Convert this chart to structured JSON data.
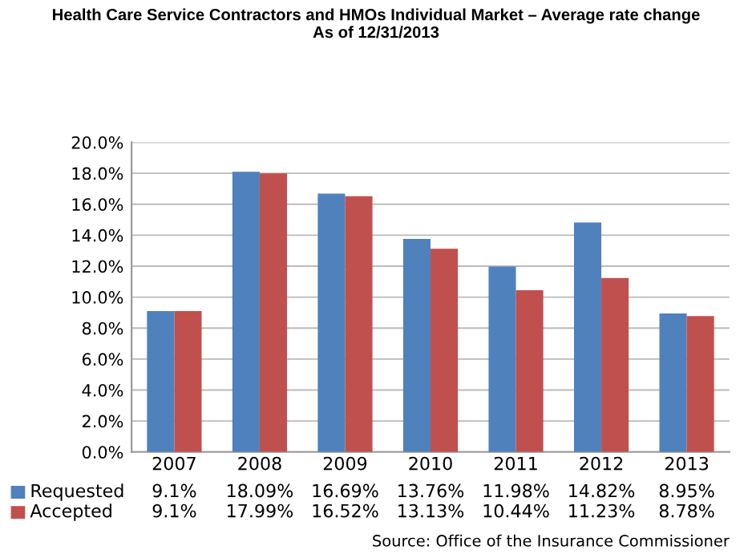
{
  "chart_data": {
    "type": "bar",
    "title": "Health Care Service Contractors and HMOs Individual Market – Average rate change\nAs of 12/31/2013",
    "categories": [
      "2007",
      "2008",
      "2009",
      "2010",
      "2011",
      "2012",
      "2013"
    ],
    "series": [
      {
        "name": "Requested",
        "color": "#4f81bd",
        "values": [
          9.1,
          18.09,
          16.69,
          13.76,
          11.98,
          14.82,
          8.95
        ],
        "value_labels": [
          "9.1%",
          "18.09%",
          "16.69%",
          "13.76%",
          "11.98%",
          "14.82%",
          "8.95%"
        ]
      },
      {
        "name": "Accepted",
        "color": "#c0504d",
        "values": [
          9.1,
          17.99,
          16.52,
          13.13,
          10.44,
          11.23,
          8.78
        ],
        "value_labels": [
          "9.1%",
          "17.99%",
          "16.52%",
          "13.13%",
          "10.44%",
          "11.23%",
          "8.78%"
        ]
      }
    ],
    "ylim": [
      0,
      20
    ],
    "yticks": [
      {
        "value": 0,
        "label": "0.0%"
      },
      {
        "value": 2,
        "label": "2.0%"
      },
      {
        "value": 4,
        "label": "4.0%"
      },
      {
        "value": 6,
        "label": "6.0%"
      },
      {
        "value": 8,
        "label": "8.0%"
      },
      {
        "value": 10,
        "label": "10.0%"
      },
      {
        "value": 12,
        "label": "12.0%"
      },
      {
        "value": 14,
        "label": "14.0%"
      },
      {
        "value": 16,
        "label": "16.0%"
      },
      {
        "value": 18,
        "label": "18.0%"
      },
      {
        "value": 20,
        "label": "20.0%"
      }
    ],
    "grid": "y",
    "legend": "bottom",
    "annotations": [
      "Source: Office of the Insurance Commissioner"
    ]
  }
}
